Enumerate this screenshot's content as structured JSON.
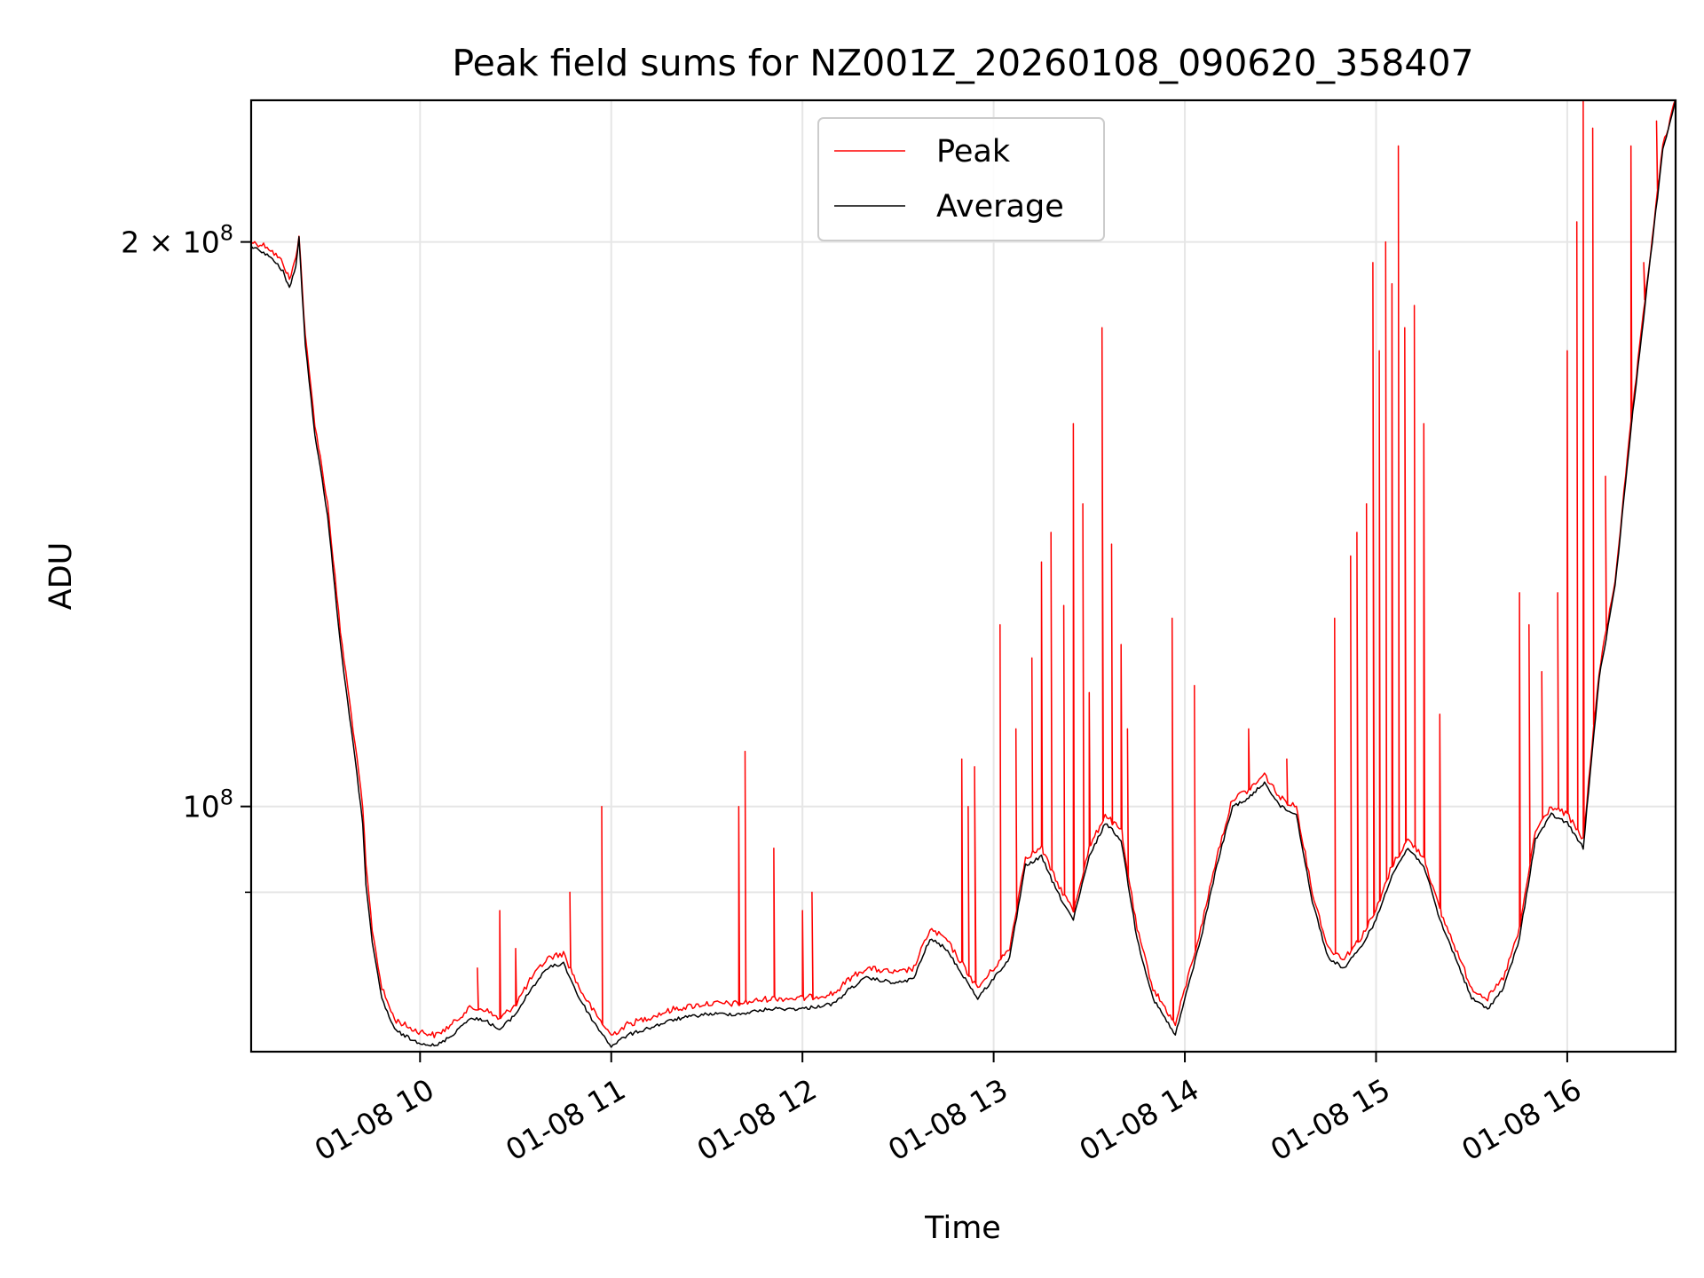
{
  "chart_data": {
    "type": "line",
    "title": "Peak field sums for NZ001Z_20260108_090620_358407",
    "xlabel": "Time",
    "ylabel": "ADU",
    "y_scale": "log",
    "grid": true,
    "legend_position": "top-center",
    "xlim": [
      "2026-01-08 09:07",
      "2026-01-08 16:34"
    ],
    "ylim": [
      74000000,
      238000000
    ],
    "x_ticks": [
      {
        "value": "2026-01-08 10:00",
        "label": "01-08 10"
      },
      {
        "value": "2026-01-08 11:00",
        "label": "01-08 11"
      },
      {
        "value": "2026-01-08 12:00",
        "label": "01-08 12"
      },
      {
        "value": "2026-01-08 13:00",
        "label": "01-08 13"
      },
      {
        "value": "2026-01-08 14:00",
        "label": "01-08 14"
      },
      {
        "value": "2026-01-08 15:00",
        "label": "01-08 15"
      },
      {
        "value": "2026-01-08 16:00",
        "label": "01-08 16"
      }
    ],
    "y_ticks": [
      {
        "value": 100000000,
        "label": "10",
        "exp": "8"
      },
      {
        "value": 200000000,
        "label": "2 × 10",
        "exp": "8"
      }
    ],
    "y_minor_ticks": [
      90000000
    ],
    "series": [
      {
        "name": "Peak",
        "color": "#ff0000",
        "base": [
          [
            "2026-01-08 09:07",
            200000000
          ],
          [
            "2026-01-08 09:12",
            199000000
          ],
          [
            "2026-01-08 09:17",
            195000000
          ],
          [
            "2026-01-08 09:19",
            191000000
          ],
          [
            "2026-01-08 09:21",
            196000000
          ],
          [
            "2026-01-08 09:22",
            202000000
          ],
          [
            "2026-01-08 09:24",
            178000000
          ],
          [
            "2026-01-08 09:27",
            160000000
          ],
          [
            "2026-01-08 09:31",
            145000000
          ],
          [
            "2026-01-08 09:35",
            124000000
          ],
          [
            "2026-01-08 09:39",
            110000000
          ],
          [
            "2026-01-08 09:42",
            100000000
          ],
          [
            "2026-01-08 09:43",
            93000000
          ],
          [
            "2026-01-08 09:45",
            86000000
          ],
          [
            "2026-01-08 09:48",
            80000000
          ],
          [
            "2026-01-08 09:52",
            77000000
          ],
          [
            "2026-01-08 09:58",
            76000000
          ],
          [
            "2026-01-08 10:05",
            75500000
          ],
          [
            "2026-01-08 10:10",
            76500000
          ],
          [
            "2026-01-08 10:15",
            78000000
          ],
          [
            "2026-01-08 10:20",
            78000000
          ],
          [
            "2026-01-08 10:25",
            77000000
          ],
          [
            "2026-01-08 10:30",
            78500000
          ],
          [
            "2026-01-08 10:35",
            81000000
          ],
          [
            "2026-01-08 10:40",
            83000000
          ],
          [
            "2026-01-08 10:45",
            83500000
          ],
          [
            "2026-01-08 10:50",
            80000000
          ],
          [
            "2026-01-08 10:55",
            77500000
          ],
          [
            "2026-01-08 11:00",
            75500000
          ],
          [
            "2026-01-08 11:05",
            76500000
          ],
          [
            "2026-01-08 11:10",
            77000000
          ],
          [
            "2026-01-08 11:20",
            78000000
          ],
          [
            "2026-01-08 11:30",
            78500000
          ],
          [
            "2026-01-08 11:40",
            78500000
          ],
          [
            "2026-01-08 11:50",
            79000000
          ],
          [
            "2026-01-08 12:00",
            79000000
          ],
          [
            "2026-01-08 12:10",
            79500000
          ],
          [
            "2026-01-08 12:15",
            81000000
          ],
          [
            "2026-01-08 12:20",
            82000000
          ],
          [
            "2026-01-08 12:30",
            81500000
          ],
          [
            "2026-01-08 12:35",
            82000000
          ],
          [
            "2026-01-08 12:40",
            86000000
          ],
          [
            "2026-01-08 12:45",
            85000000
          ],
          [
            "2026-01-08 12:55",
            80000000
          ],
          [
            "2026-01-08 13:05",
            84000000
          ],
          [
            "2026-01-08 13:10",
            94000000
          ],
          [
            "2026-01-08 13:15",
            95000000
          ],
          [
            "2026-01-08 13:20",
            91000000
          ],
          [
            "2026-01-08 13:25",
            88000000
          ],
          [
            "2026-01-08 13:30",
            95000000
          ],
          [
            "2026-01-08 13:35",
            99000000
          ],
          [
            "2026-01-08 13:40",
            97000000
          ],
          [
            "2026-01-08 13:45",
            86000000
          ],
          [
            "2026-01-08 13:50",
            80000000
          ],
          [
            "2026-01-08 13:57",
            76500000
          ],
          [
            "2026-01-08 14:05",
            86000000
          ],
          [
            "2026-01-08 14:10",
            94000000
          ],
          [
            "2026-01-08 14:15",
            101000000
          ],
          [
            "2026-01-08 14:20",
            102000000
          ],
          [
            "2026-01-08 14:25",
            104000000
          ],
          [
            "2026-01-08 14:30",
            101000000
          ],
          [
            "2026-01-08 14:35",
            100000000
          ],
          [
            "2026-01-08 14:40",
            90000000
          ],
          [
            "2026-01-08 14:45",
            84000000
          ],
          [
            "2026-01-08 14:50",
            83000000
          ],
          [
            "2026-01-08 14:55",
            85000000
          ],
          [
            "2026-01-08 15:00",
            88000000
          ],
          [
            "2026-01-08 15:05",
            93000000
          ],
          [
            "2026-01-08 15:10",
            96000000
          ],
          [
            "2026-01-08 15:15",
            94000000
          ],
          [
            "2026-01-08 15:20",
            88000000
          ],
          [
            "2026-01-08 15:25",
            84000000
          ],
          [
            "2026-01-08 15:30",
            80000000
          ],
          [
            "2026-01-08 15:35",
            79000000
          ],
          [
            "2026-01-08 15:40",
            81000000
          ],
          [
            "2026-01-08 15:45",
            86000000
          ],
          [
            "2026-01-08 15:50",
            97000000
          ],
          [
            "2026-01-08 15:55",
            100000000
          ],
          [
            "2026-01-08 16:00",
            99000000
          ],
          [
            "2026-01-08 16:05",
            96000000
          ],
          [
            "2026-01-08 16:10",
            118000000
          ],
          [
            "2026-01-08 16:15",
            132000000
          ],
          [
            "2026-01-08 16:20",
            160000000
          ],
          [
            "2026-01-08 16:25",
            190000000
          ],
          [
            "2026-01-08 16:30",
            225000000
          ],
          [
            "2026-01-08 16:34",
            238000000
          ]
        ],
        "spikes": [
          [
            "2026-01-08 10:18",
            82000000
          ],
          [
            "2026-01-08 10:25",
            88000000
          ],
          [
            "2026-01-08 10:30",
            84000000
          ],
          [
            "2026-01-08 10:47",
            90000000
          ],
          [
            "2026-01-08 10:57",
            100000000
          ],
          [
            "2026-01-08 11:40",
            100000000
          ],
          [
            "2026-01-08 11:42",
            107000000
          ],
          [
            "2026-01-08 11:51",
            95000000
          ],
          [
            "2026-01-08 12:00",
            88000000
          ],
          [
            "2026-01-08 12:03",
            90000000
          ],
          [
            "2026-01-08 12:50",
            106000000
          ],
          [
            "2026-01-08 12:52",
            100000000
          ],
          [
            "2026-01-08 12:54",
            105000000
          ],
          [
            "2026-01-08 13:02",
            125000000
          ],
          [
            "2026-01-08 13:07",
            110000000
          ],
          [
            "2026-01-08 13:12",
            120000000
          ],
          [
            "2026-01-08 13:15",
            135000000
          ],
          [
            "2026-01-08 13:18",
            140000000
          ],
          [
            "2026-01-08 13:22",
            128000000
          ],
          [
            "2026-01-08 13:25",
            160000000
          ],
          [
            "2026-01-08 13:28",
            145000000
          ],
          [
            "2026-01-08 13:30",
            115000000
          ],
          [
            "2026-01-08 13:34",
            180000000
          ],
          [
            "2026-01-08 13:37",
            138000000
          ],
          [
            "2026-01-08 13:40",
            122000000
          ],
          [
            "2026-01-08 13:42",
            110000000
          ],
          [
            "2026-01-08 13:56",
            126000000
          ],
          [
            "2026-01-08 14:03",
            116000000
          ],
          [
            "2026-01-08 14:20",
            110000000
          ],
          [
            "2026-01-08 14:32",
            106000000
          ],
          [
            "2026-01-08 14:47",
            126000000
          ],
          [
            "2026-01-08 14:52",
            136000000
          ],
          [
            "2026-01-08 14:54",
            140000000
          ],
          [
            "2026-01-08 14:57",
            145000000
          ],
          [
            "2026-01-08 14:59",
            195000000
          ],
          [
            "2026-01-08 15:01",
            175000000
          ],
          [
            "2026-01-08 15:03",
            200000000
          ],
          [
            "2026-01-08 15:05",
            190000000
          ],
          [
            "2026-01-08 15:07",
            225000000
          ],
          [
            "2026-01-08 15:09",
            180000000
          ],
          [
            "2026-01-08 15:12",
            185000000
          ],
          [
            "2026-01-08 15:15",
            160000000
          ],
          [
            "2026-01-08 15:20",
            112000000
          ],
          [
            "2026-01-08 15:45",
            130000000
          ],
          [
            "2026-01-08 15:48",
            125000000
          ],
          [
            "2026-01-08 15:52",
            118000000
          ],
          [
            "2026-01-08 15:57",
            130000000
          ],
          [
            "2026-01-08 16:00",
            175000000
          ],
          [
            "2026-01-08 16:03",
            205000000
          ],
          [
            "2026-01-08 16:05",
            238000000
          ],
          [
            "2026-01-08 16:08",
            230000000
          ],
          [
            "2026-01-08 16:12",
            150000000
          ],
          [
            "2026-01-08 16:20",
            225000000
          ],
          [
            "2026-01-08 16:24",
            195000000
          ],
          [
            "2026-01-08 16:28",
            232000000
          ]
        ]
      },
      {
        "name": "Average",
        "color": "#000000",
        "base": [
          [
            "2026-01-08 09:07",
            199000000
          ],
          [
            "2026-01-08 09:12",
            197000000
          ],
          [
            "2026-01-08 09:17",
            193000000
          ],
          [
            "2026-01-08 09:19",
            189000000
          ],
          [
            "2026-01-08 09:21",
            194000000
          ],
          [
            "2026-01-08 09:22",
            201000000
          ],
          [
            "2026-01-08 09:24",
            176000000
          ],
          [
            "2026-01-08 09:27",
            158000000
          ],
          [
            "2026-01-08 09:31",
            143000000
          ],
          [
            "2026-01-08 09:35",
            122000000
          ],
          [
            "2026-01-08 09:39",
            108000000
          ],
          [
            "2026-01-08 09:42",
            98000000
          ],
          [
            "2026-01-08 09:43",
            91000000
          ],
          [
            "2026-01-08 09:45",
            84500000
          ],
          [
            "2026-01-08 09:48",
            79000000
          ],
          [
            "2026-01-08 09:52",
            76000000
          ],
          [
            "2026-01-08 09:58",
            75000000
          ],
          [
            "2026-01-08 10:05",
            74500000
          ],
          [
            "2026-01-08 10:10",
            75500000
          ],
          [
            "2026-01-08 10:15",
            77000000
          ],
          [
            "2026-01-08 10:20",
            77000000
          ],
          [
            "2026-01-08 10:25",
            76000000
          ],
          [
            "2026-01-08 10:30",
            77500000
          ],
          [
            "2026-01-08 10:35",
            80000000
          ],
          [
            "2026-01-08 10:40",
            82000000
          ],
          [
            "2026-01-08 10:45",
            82500000
          ],
          [
            "2026-01-08 10:50",
            79000000
          ],
          [
            "2026-01-08 10:55",
            76500000
          ],
          [
            "2026-01-08 11:00",
            74500000
          ],
          [
            "2026-01-08 11:05",
            75500000
          ],
          [
            "2026-01-08 11:10",
            76000000
          ],
          [
            "2026-01-08 11:20",
            77000000
          ],
          [
            "2026-01-08 11:30",
            77500000
          ],
          [
            "2026-01-08 11:40",
            77500000
          ],
          [
            "2026-01-08 11:50",
            78000000
          ],
          [
            "2026-01-08 12:00",
            78000000
          ],
          [
            "2026-01-08 12:10",
            78500000
          ],
          [
            "2026-01-08 12:15",
            80000000
          ],
          [
            "2026-01-08 12:20",
            81000000
          ],
          [
            "2026-01-08 12:30",
            80500000
          ],
          [
            "2026-01-08 12:35",
            81000000
          ],
          [
            "2026-01-08 12:40",
            85000000
          ],
          [
            "2026-01-08 12:45",
            84000000
          ],
          [
            "2026-01-08 12:55",
            79000000
          ],
          [
            "2026-01-08 13:05",
            83000000
          ],
          [
            "2026-01-08 13:10",
            93000000
          ],
          [
            "2026-01-08 13:15",
            94000000
          ],
          [
            "2026-01-08 13:20",
            90000000
          ],
          [
            "2026-01-08 13:25",
            87000000
          ],
          [
            "2026-01-08 13:30",
            94000000
          ],
          [
            "2026-01-08 13:35",
            98000000
          ],
          [
            "2026-01-08 13:40",
            96000000
          ],
          [
            "2026-01-08 13:45",
            85000000
          ],
          [
            "2026-01-08 13:50",
            79000000
          ],
          [
            "2026-01-08 13:57",
            75500000
          ],
          [
            "2026-01-08 14:05",
            85000000
          ],
          [
            "2026-01-08 14:10",
            93000000
          ],
          [
            "2026-01-08 14:15",
            100000000
          ],
          [
            "2026-01-08 14:20",
            101000000
          ],
          [
            "2026-01-08 14:25",
            103000000
          ],
          [
            "2026-01-08 14:30",
            100000000
          ],
          [
            "2026-01-08 14:35",
            99000000
          ],
          [
            "2026-01-08 14:40",
            89000000
          ],
          [
            "2026-01-08 14:45",
            83000000
          ],
          [
            "2026-01-08 14:50",
            82000000
          ],
          [
            "2026-01-08 14:55",
            84000000
          ],
          [
            "2026-01-08 15:00",
            87000000
          ],
          [
            "2026-01-08 15:05",
            92000000
          ],
          [
            "2026-01-08 15:10",
            95000000
          ],
          [
            "2026-01-08 15:15",
            93000000
          ],
          [
            "2026-01-08 15:20",
            87000000
          ],
          [
            "2026-01-08 15:25",
            83000000
          ],
          [
            "2026-01-08 15:30",
            79000000
          ],
          [
            "2026-01-08 15:35",
            78000000
          ],
          [
            "2026-01-08 15:40",
            80000000
          ],
          [
            "2026-01-08 15:45",
            85000000
          ],
          [
            "2026-01-08 15:50",
            96000000
          ],
          [
            "2026-01-08 15:55",
            99000000
          ],
          [
            "2026-01-08 16:00",
            98000000
          ],
          [
            "2026-01-08 16:05",
            95000000
          ],
          [
            "2026-01-08 16:10",
            117000000
          ],
          [
            "2026-01-08 16:15",
            131000000
          ],
          [
            "2026-01-08 16:20",
            159000000
          ],
          [
            "2026-01-08 16:25",
            189000000
          ],
          [
            "2026-01-08 16:30",
            224000000
          ],
          [
            "2026-01-08 16:34",
            238000000
          ]
        ]
      }
    ]
  }
}
